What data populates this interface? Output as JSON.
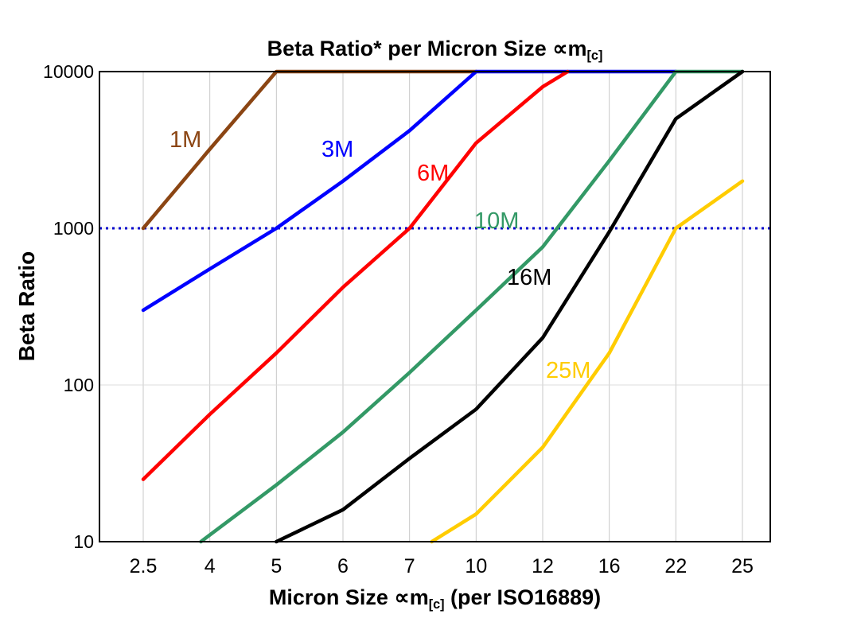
{
  "title": {
    "prefix": "Beta Ratio* per Micron Size ",
    "symbol": "∝m",
    "sub": "[c]"
  },
  "xlabel": {
    "prefix": "Micron Size ",
    "symbol": "∝m",
    "sub": "[c]",
    "suffix": " (per ISO16889)"
  },
  "ylabel": "Beta Ratio",
  "chart_data": {
    "type": "line",
    "title": "Beta Ratio* per Micron Size ∝m[c]",
    "xlabel": "Micron Size ∝m[c] (per ISO16889)",
    "ylabel": "Beta Ratio",
    "x_categories": [
      2.5,
      4,
      5,
      6,
      7,
      10,
      12,
      16,
      22,
      25
    ],
    "x_tick_labels": [
      "2.5",
      "4",
      "5",
      "6",
      "7",
      "10",
      "12",
      "16",
      "22",
      "25"
    ],
    "y_scale": "log",
    "ylim": [
      10,
      10000
    ],
    "y_ticks": [
      10,
      100,
      1000,
      10000
    ],
    "grid": {
      "vertical": true,
      "horizontal": true,
      "color": "#c8c8c8"
    },
    "legend_position": "inline-labels",
    "reference_line": {
      "y": 1000,
      "style": "dotted",
      "color": "#0000cc"
    },
    "series": [
      {
        "name": "1M",
        "color": "#8B4513",
        "label_pos": [
          213,
          160
        ],
        "points": [
          [
            2.5,
            1000
          ],
          [
            4,
            3200
          ],
          [
            5,
            10000
          ],
          [
            10,
            10000
          ]
        ]
      },
      {
        "name": "3M",
        "color": "#0000FF",
        "label_pos": [
          404,
          172
        ],
        "points": [
          [
            2.5,
            300
          ],
          [
            4,
            550
          ],
          [
            5,
            1000
          ],
          [
            6,
            2000
          ],
          [
            7,
            4200
          ],
          [
            10,
            10000
          ],
          [
            22,
            10000
          ]
        ]
      },
      {
        "name": "6M",
        "color": "#FF0000",
        "label_pos": [
          524,
          202
        ],
        "points": [
          [
            2.5,
            25
          ],
          [
            4,
            65
          ],
          [
            5,
            160
          ],
          [
            6,
            420
          ],
          [
            7,
            1000
          ],
          [
            10,
            3500
          ],
          [
            12,
            8000
          ],
          [
            13.5,
            10000
          ]
        ]
      },
      {
        "name": "10M",
        "color": "#339966",
        "label_pos": [
          596,
          262
        ],
        "points": [
          [
            3.8,
            10
          ],
          [
            5,
            23
          ],
          [
            6,
            50
          ],
          [
            7,
            120
          ],
          [
            10,
            300
          ],
          [
            12,
            760
          ],
          [
            16,
            2700
          ],
          [
            22,
            10000
          ],
          [
            25,
            10000
          ]
        ]
      },
      {
        "name": "16M",
        "color": "#000000",
        "label_pos": [
          637,
          333
        ],
        "points": [
          [
            5,
            10
          ],
          [
            6,
            16
          ],
          [
            7,
            34
          ],
          [
            10,
            70
          ],
          [
            12,
            200
          ],
          [
            16,
            950
          ],
          [
            22,
            5000
          ],
          [
            25,
            10000
          ]
        ]
      },
      {
        "name": "25M",
        "color": "#FFCC00",
        "label_pos": [
          686,
          450
        ],
        "points": [
          [
            8,
            10
          ],
          [
            10,
            15
          ],
          [
            12,
            40
          ],
          [
            16,
            160
          ],
          [
            22,
            1000
          ],
          [
            25,
            2000
          ]
        ]
      }
    ]
  }
}
